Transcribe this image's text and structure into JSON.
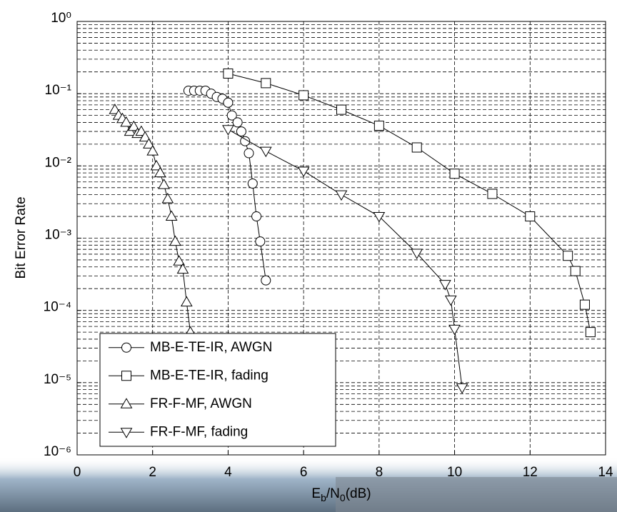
{
  "chart_data": {
    "type": "line",
    "ylabel": "Bit Error Rate",
    "xlabel_parts": [
      "E",
      "b",
      "/N",
      "0",
      "(dB)"
    ],
    "xlim": [
      0,
      14
    ],
    "xticks": [
      0,
      2,
      4,
      6,
      8,
      10,
      12,
      14
    ],
    "ylim": [
      1e-06,
      1
    ],
    "log_y": true,
    "yticks": [
      {
        "value": 1,
        "label": "10⁰"
      },
      {
        "value": 0.1,
        "label": "10⁻¹"
      },
      {
        "value": 0.01,
        "label": "10⁻²"
      },
      {
        "value": 0.001,
        "label": "10⁻³"
      },
      {
        "value": 0.0001,
        "label": "10⁻⁴"
      },
      {
        "value": 1e-05,
        "label": "10⁻⁵"
      },
      {
        "value": 1e-06,
        "label": "10⁻⁶"
      }
    ],
    "grid": true,
    "minor_grid": true,
    "legend": "lower-left",
    "series": [
      {
        "name": "MB-E-TE-IR, AWGN",
        "marker": "circle",
        "color": "#000000",
        "x": [
          2.95,
          3.1,
          3.25,
          3.4,
          3.55,
          3.7,
          3.85,
          4.0,
          4.1,
          4.25,
          4.35,
          4.45,
          4.55,
          4.65,
          4.75,
          4.85,
          5.0
        ],
        "values": [
          0.11,
          0.11,
          0.11,
          0.11,
          0.1,
          0.09,
          0.085,
          0.075,
          0.05,
          0.04,
          0.03,
          0.022,
          0.015,
          0.0057,
          0.002,
          0.0009,
          0.00026
        ]
      },
      {
        "name": "MB-E-TE-IR, fading",
        "marker": "square",
        "color": "#000000",
        "x": [
          4,
          5,
          6,
          7,
          8,
          9,
          10,
          11,
          12,
          13,
          13.2,
          13.45,
          13.6
        ],
        "values": [
          0.19,
          0.14,
          0.095,
          0.06,
          0.036,
          0.018,
          0.0078,
          0.0041,
          0.002,
          0.00057,
          0.00035,
          0.00012,
          5e-05
        ]
      },
      {
        "name": "FR-F-MF, AWGN",
        "marker": "triangle-up",
        "color": "#000000",
        "x": [
          1.0,
          1.1,
          1.2,
          1.3,
          1.4,
          1.5,
          1.6,
          1.7,
          1.8,
          1.9,
          2.0,
          2.1,
          2.2,
          2.3,
          2.4,
          2.5,
          2.6,
          2.7,
          2.8,
          2.9,
          3.0
        ],
        "values": [
          0.06,
          0.05,
          0.045,
          0.04,
          0.03,
          0.035,
          0.028,
          0.03,
          0.025,
          0.02,
          0.016,
          0.01,
          0.008,
          0.0055,
          0.0035,
          0.002,
          0.0009,
          0.00048,
          0.00037,
          0.00013,
          5e-05
        ]
      },
      {
        "name": "FR-F-MF, fading",
        "marker": "triangle-down",
        "color": "#000000",
        "x": [
          4,
          5,
          6,
          7,
          8,
          9,
          9.75,
          9.9,
          10,
          10.2
        ],
        "values": [
          0.032,
          0.016,
          0.0085,
          0.004,
          0.002,
          0.00062,
          0.00023,
          0.00014,
          5.5e-05,
          8.5e-06
        ]
      }
    ]
  }
}
